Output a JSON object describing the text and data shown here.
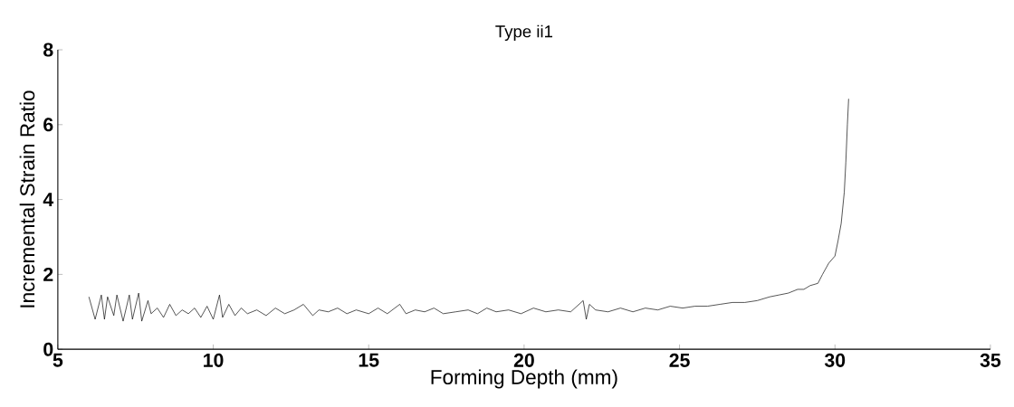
{
  "chart_data": {
    "type": "line",
    "title": "Type ii1",
    "xlabel": "Forming Depth (mm)",
    "ylabel": "Incremental Strain Ratio",
    "xlim": [
      5,
      35
    ],
    "xticks": [
      5,
      10,
      15,
      20,
      25,
      30,
      35
    ],
    "ylim": [
      0,
      8
    ],
    "yticks": [
      0,
      2,
      4,
      6,
      8
    ],
    "grid": false,
    "marker": "none",
    "line_style": "solid",
    "series": [
      {
        "color": "#000000",
        "x": [
          6.0,
          6.2,
          6.4,
          6.5,
          6.6,
          6.8,
          6.9,
          7.1,
          7.3,
          7.4,
          7.6,
          7.7,
          7.9,
          8.0,
          8.2,
          8.4,
          8.6,
          8.8,
          9.0,
          9.2,
          9.4,
          9.6,
          9.8,
          10.0,
          10.2,
          10.3,
          10.5,
          10.7,
          10.9,
          11.1,
          11.4,
          11.7,
          12.0,
          12.3,
          12.6,
          12.9,
          13.2,
          13.4,
          13.7,
          14.0,
          14.3,
          14.6,
          15.0,
          15.3,
          15.6,
          16.0,
          16.2,
          16.5,
          16.8,
          17.1,
          17.4,
          17.8,
          18.2,
          18.5,
          18.8,
          19.1,
          19.5,
          19.9,
          20.3,
          20.7,
          21.1,
          21.5,
          21.9,
          22.0,
          22.1,
          22.3,
          22.7,
          23.1,
          23.5,
          23.9,
          24.3,
          24.7,
          25.1,
          25.5,
          25.9,
          26.3,
          26.7,
          27.1,
          27.5,
          27.9,
          28.2,
          28.5,
          28.8,
          29.0,
          29.2,
          29.45,
          29.6,
          29.8,
          30.0,
          30.1,
          30.2,
          30.3,
          30.35,
          30.4,
          30.44
        ],
        "values": [
          1.4,
          0.8,
          1.45,
          0.8,
          1.4,
          0.9,
          1.45,
          0.75,
          1.45,
          0.8,
          1.5,
          0.75,
          1.3,
          0.95,
          1.1,
          0.85,
          1.2,
          0.9,
          1.05,
          0.95,
          1.1,
          0.85,
          1.15,
          0.8,
          1.45,
          0.85,
          1.2,
          0.9,
          1.1,
          0.95,
          1.05,
          0.9,
          1.1,
          0.95,
          1.05,
          1.2,
          0.9,
          1.05,
          1.0,
          1.1,
          0.95,
          1.05,
          0.95,
          1.1,
          0.95,
          1.2,
          0.95,
          1.05,
          1.0,
          1.1,
          0.95,
          1.0,
          1.05,
          0.95,
          1.1,
          1.0,
          1.05,
          0.95,
          1.1,
          1.0,
          1.05,
          1.0,
          1.3,
          0.8,
          1.2,
          1.05,
          1.0,
          1.1,
          1.0,
          1.1,
          1.05,
          1.15,
          1.1,
          1.15,
          1.15,
          1.2,
          1.25,
          1.25,
          1.3,
          1.4,
          1.45,
          1.5,
          1.6,
          1.6,
          1.7,
          1.76,
          2.0,
          2.3,
          2.49,
          2.9,
          3.36,
          4.2,
          5.0,
          6.0,
          6.69
        ]
      }
    ]
  }
}
